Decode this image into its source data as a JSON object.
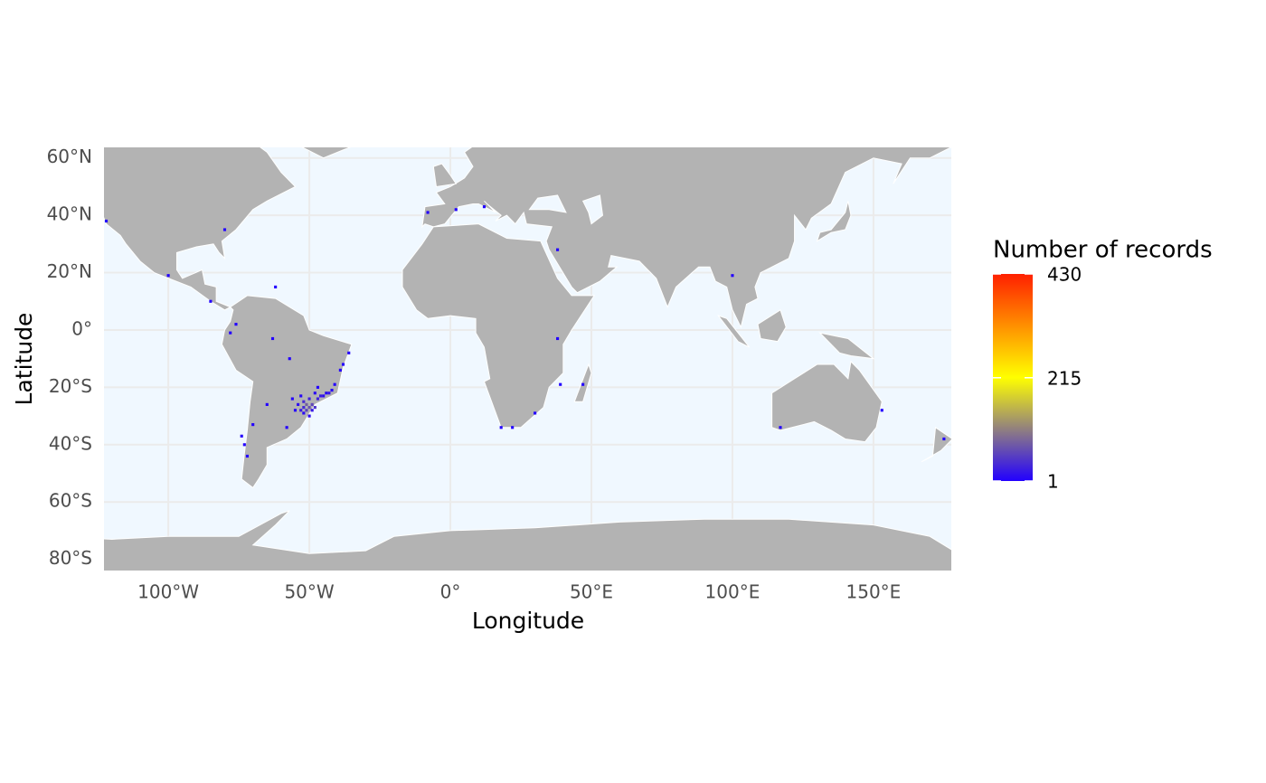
{
  "chart_data": {
    "type": "grid-map",
    "x_label": "Longitude",
    "y_label": "Latitude",
    "xlim": [
      -122.8,
      177.6
    ],
    "ylim": [
      -83.9,
      63.7
    ],
    "xticks": [
      {
        "value": -100,
        "label": "100°W"
      },
      {
        "value": -50,
        "label": "50°W"
      },
      {
        "value": 0,
        "label": "0°"
      },
      {
        "value": 50,
        "label": "50°E"
      },
      {
        "value": 100,
        "label": "100°E"
      },
      {
        "value": 150,
        "label": "150°E"
      }
    ],
    "yticks": [
      {
        "value": 60,
        "label": "60°N"
      },
      {
        "value": 40,
        "label": "40°N"
      },
      {
        "value": 20,
        "label": "20°N"
      },
      {
        "value": 0,
        "label": "0°"
      },
      {
        "value": -20,
        "label": "20°S"
      },
      {
        "value": -40,
        "label": "40°S"
      },
      {
        "value": -60,
        "label": "60°S"
      },
      {
        "value": -80,
        "label": "80°S"
      }
    ],
    "grid": true,
    "legend": {
      "title": "Number of records",
      "clim": [
        1,
        430
      ],
      "ticks": [
        1,
        215,
        430
      ],
      "colors": [
        "#2200ff",
        "#ffff00",
        "#ff2000"
      ]
    },
    "x": [
      -52,
      -51,
      -50,
      -49,
      -48,
      -50,
      -52,
      -53,
      -51,
      -49,
      -47,
      -46,
      -45,
      -44,
      -43,
      -42,
      -54,
      -52,
      -50,
      -48,
      -53,
      -55,
      -56,
      -47,
      -39,
      -36,
      -38,
      -41,
      -78,
      -76,
      -74,
      -73,
      -72,
      -70,
      -65,
      -58,
      -63,
      -57,
      -85,
      -62,
      -100,
      -80,
      -122,
      -8,
      2,
      12,
      30,
      18,
      22,
      38,
      47,
      39,
      153,
      117,
      175,
      100,
      38
    ],
    "y": [
      -25,
      -26,
      -24,
      -26,
      -27,
      -27,
      -27,
      -28,
      -28,
      -28,
      -24,
      -23,
      -23,
      -22,
      -22,
      -21,
      -26,
      -29,
      -30,
      -22,
      -23,
      -28,
      -24,
      -20,
      -14,
      -8,
      -12,
      -19,
      -1,
      2,
      -37,
      -40,
      -44,
      -33,
      -26,
      -34,
      -3,
      -10,
      10,
      15,
      19,
      35,
      38,
      41,
      42,
      43,
      -29,
      -34,
      -34,
      -3,
      -19,
      -19,
      -28,
      -34,
      -38,
      19,
      28
    ],
    "values": [
      40,
      80,
      30,
      60,
      45,
      70,
      35,
      25,
      55,
      20,
      30,
      25,
      15,
      10,
      20,
      8,
      15,
      10,
      12,
      10,
      8,
      5,
      4,
      3,
      2,
      3,
      2,
      3,
      2,
      1,
      2,
      1,
      1,
      2,
      1,
      2,
      1,
      1,
      1,
      1,
      1,
      1,
      1,
      2,
      1,
      1,
      1,
      2,
      1,
      1,
      1,
      1,
      1,
      1,
      1,
      1,
      1
    ]
  }
}
